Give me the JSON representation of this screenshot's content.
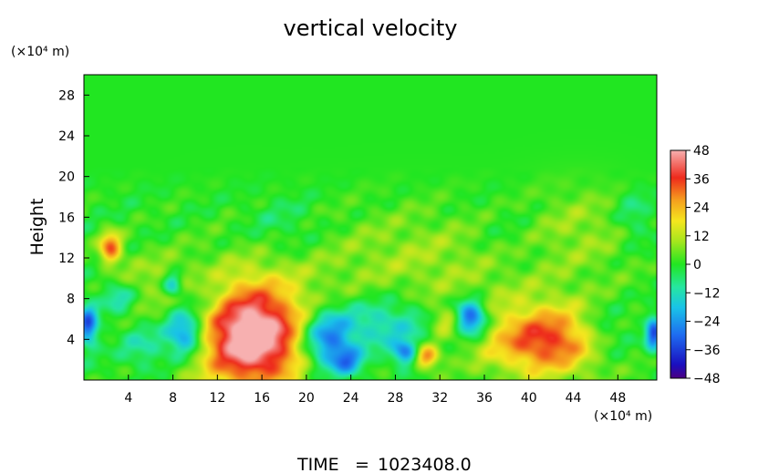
{
  "chart_data": {
    "type": "heatmap",
    "title": "vertical velocity",
    "ylabel": "Height",
    "x_unit": "(×10⁴ m)",
    "y_unit": "(×10⁴ m)",
    "xlim": [
      0,
      51.5
    ],
    "ylim": [
      0,
      30
    ],
    "x_ticks": [
      4,
      8,
      12,
      16,
      20,
      24,
      28,
      32,
      36,
      40,
      44,
      48
    ],
    "y_ticks": [
      4,
      8,
      12,
      16,
      20,
      24,
      28
    ],
    "colorbar": {
      "ticks": [
        48,
        36,
        24,
        12,
        0,
        -12,
        -24,
        -36,
        -48
      ],
      "range": [
        -48,
        48
      ]
    },
    "features": [
      {
        "x": 15.2,
        "y": 4.3,
        "value": 47,
        "sx": 3.1,
        "sy": 3.4
      },
      {
        "x": 14.8,
        "y": 4.8,
        "value": 10,
        "sx": 5.5,
        "sy": 5.5
      },
      {
        "x": 41.8,
        "y": 3.8,
        "value": 30,
        "sx": 3.6,
        "sy": 2.2
      },
      {
        "x": 41.0,
        "y": 5.0,
        "value": 8,
        "sx": 6.0,
        "sy": 4.0
      },
      {
        "x": 2.4,
        "y": 13.0,
        "value": 32,
        "sx": 0.7,
        "sy": 1.1
      },
      {
        "x": 30.8,
        "y": 2.3,
        "value": 30,
        "sx": 0.8,
        "sy": 0.8
      },
      {
        "x": 9.1,
        "y": 4.6,
        "value": -34,
        "sx": 1.2,
        "sy": 1.6
      },
      {
        "x": 21.8,
        "y": 3.9,
        "value": -32,
        "sx": 1.6,
        "sy": 2.0
      },
      {
        "x": 23.7,
        "y": 1.8,
        "value": -22,
        "sx": 1.0,
        "sy": 1.0
      },
      {
        "x": 34.8,
        "y": 6.1,
        "value": -40,
        "sx": 1.0,
        "sy": 1.2
      },
      {
        "x": 28.9,
        "y": 2.7,
        "value": -28,
        "sx": 0.8,
        "sy": 0.8
      },
      {
        "x": 8.0,
        "y": 9.3,
        "value": -22,
        "sx": 0.6,
        "sy": 0.8
      },
      {
        "x": 0.4,
        "y": 5.4,
        "value": -32,
        "sx": 0.6,
        "sy": 1.4
      },
      {
        "x": 51.2,
        "y": 4.6,
        "value": -34,
        "sx": 0.5,
        "sy": 1.2
      },
      {
        "x": 3.1,
        "y": 8.2,
        "value": -14,
        "sx": 1.0,
        "sy": 1.0
      },
      {
        "x": 27.0,
        "y": 5.5,
        "value": -16,
        "sx": 3.2,
        "sy": 1.8
      },
      {
        "x": 46.8,
        "y": 4.5,
        "value": -14,
        "sx": 2.0,
        "sy": 2.0
      },
      {
        "x": 5.5,
        "y": 3.2,
        "value": -12,
        "sx": 1.5,
        "sy": 1.5
      },
      {
        "x": 32.5,
        "y": 5.8,
        "value": 14,
        "sx": 1.0,
        "sy": 1.0
      },
      {
        "x": 30.0,
        "y": 12.0,
        "value": 9,
        "sx": 7.0,
        "sy": 3.5
      },
      {
        "x": 6.0,
        "y": 10.0,
        "value": 7,
        "sx": 2.5,
        "sy": 2.0
      },
      {
        "x": 44.5,
        "y": 15.0,
        "value": 8,
        "sx": 4.0,
        "sy": 3.0
      },
      {
        "x": 18.0,
        "y": 15.0,
        "value": -6,
        "sx": 2.5,
        "sy": 2.0
      },
      {
        "x": 38.5,
        "y": 14.0,
        "value": -5,
        "sx": 2.5,
        "sy": 2.5
      },
      {
        "x": 49.5,
        "y": 16.0,
        "value": -9,
        "sx": 1.2,
        "sy": 1.8
      },
      {
        "x": 11.0,
        "y": 8.0,
        "value": -8,
        "sx": 1.5,
        "sy": 1.5
      }
    ]
  },
  "footer": {
    "time_label": "TIME",
    "time_eq": "=",
    "time_value": "1023408.0"
  }
}
